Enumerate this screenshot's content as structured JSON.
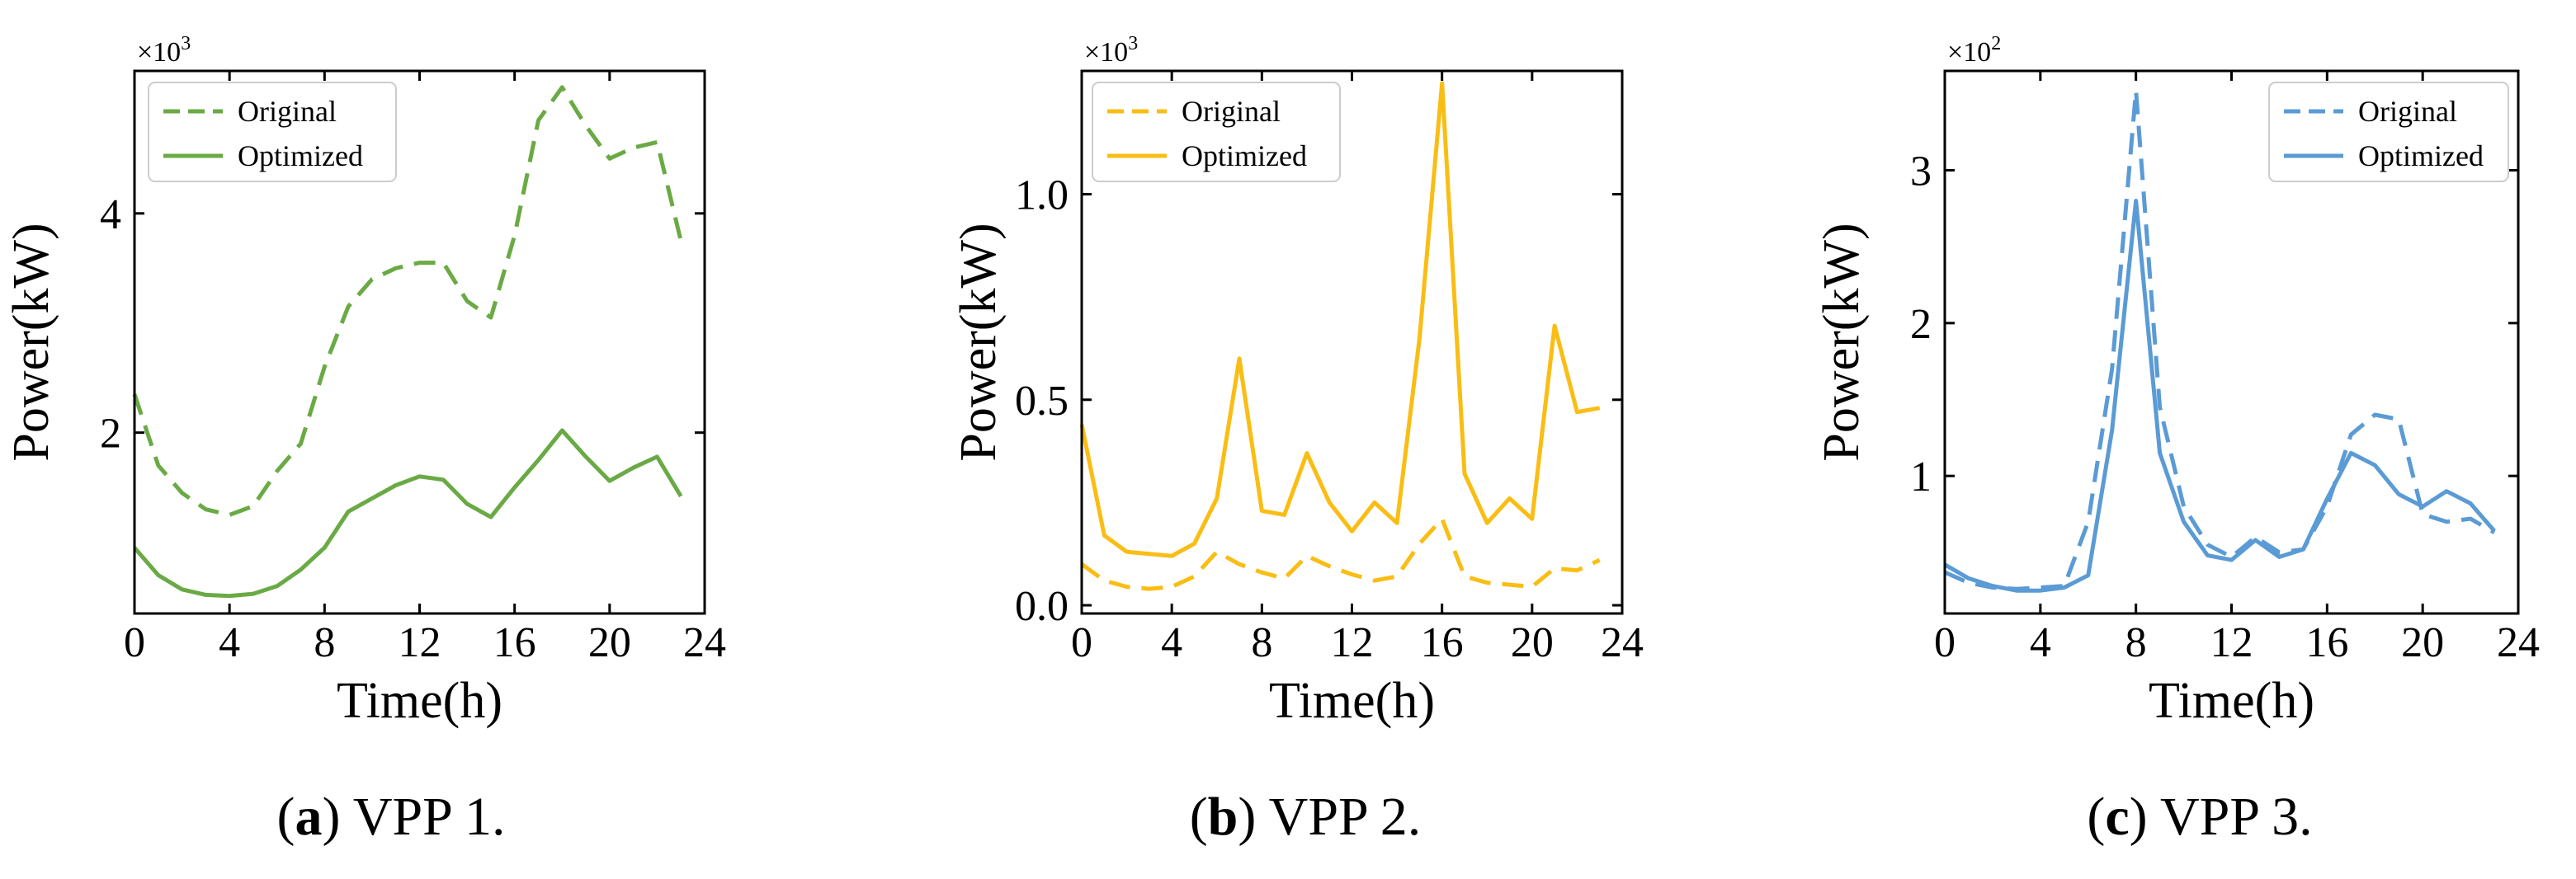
{
  "chart_data": [
    {
      "type": "line",
      "caption_letter": "a",
      "caption_rest": "VPP 1.",
      "xlabel": "Time(h)",
      "ylabel": "Power(kW)",
      "scale_label": "×10",
      "scale_exponent": "3",
      "xlim": [
        0,
        24
      ],
      "ylim": [
        0.35,
        5.3
      ],
      "xticks": [
        0,
        4,
        8,
        12,
        16,
        20,
        24
      ],
      "yticks": [
        2,
        4
      ],
      "color": "#6aaa45",
      "legend_position": "top-left",
      "x": [
        0,
        1,
        2,
        3,
        4,
        5,
        6,
        7,
        8,
        9,
        10,
        11,
        12,
        13,
        14,
        15,
        16,
        17,
        18,
        19,
        20,
        21,
        22,
        23
      ],
      "series": [
        {
          "name": "Original",
          "style": "dashed",
          "values": [
            2.35,
            1.7,
            1.45,
            1.3,
            1.25,
            1.33,
            1.65,
            1.9,
            2.6,
            3.15,
            3.4,
            3.5,
            3.55,
            3.55,
            3.2,
            3.05,
            3.8,
            4.85,
            5.15,
            4.8,
            4.5,
            4.6,
            4.65,
            3.75
          ]
        },
        {
          "name": "Optimized",
          "style": "solid",
          "values": [
            0.95,
            0.7,
            0.57,
            0.52,
            0.51,
            0.53,
            0.6,
            0.75,
            0.95,
            1.28,
            1.4,
            1.52,
            1.6,
            1.57,
            1.35,
            1.23,
            1.5,
            1.75,
            2.02,
            1.78,
            1.56,
            1.68,
            1.78,
            1.42
          ]
        }
      ]
    },
    {
      "type": "line",
      "caption_letter": "b",
      "caption_rest": "VPP 2.",
      "xlabel": "Time(h)",
      "ylabel": "Power(kW)",
      "scale_label": "×10",
      "scale_exponent": "3",
      "xlim": [
        0,
        24
      ],
      "ylim": [
        -0.02,
        1.3
      ],
      "xticks": [
        0,
        4,
        8,
        12,
        16,
        20,
        24
      ],
      "yticks": [
        0.0,
        0.5,
        1.0
      ],
      "ytick_labels": [
        "0.0",
        "0.5",
        "1.0"
      ],
      "color": "#f9bd14",
      "legend_position": "top-left",
      "x": [
        0,
        1,
        2,
        3,
        4,
        5,
        6,
        7,
        8,
        9,
        10,
        11,
        12,
        13,
        14,
        15,
        16,
        17,
        18,
        19,
        20,
        21,
        22,
        23
      ],
      "series": [
        {
          "name": "Original",
          "style": "dashed",
          "values": [
            0.1,
            0.06,
            0.045,
            0.04,
            0.045,
            0.07,
            0.13,
            0.1,
            0.08,
            0.065,
            0.12,
            0.095,
            0.075,
            0.06,
            0.07,
            0.15,
            0.21,
            0.07,
            0.055,
            0.05,
            0.045,
            0.09,
            0.085,
            0.11
          ]
        },
        {
          "name": "Optimized",
          "style": "solid",
          "values": [
            0.44,
            0.17,
            0.13,
            0.125,
            0.12,
            0.15,
            0.26,
            0.6,
            0.23,
            0.22,
            0.37,
            0.25,
            0.18,
            0.25,
            0.2,
            0.65,
            1.27,
            0.32,
            0.2,
            0.26,
            0.21,
            0.68,
            0.47,
            0.48
          ]
        }
      ]
    },
    {
      "type": "line",
      "caption_letter": "c",
      "caption_rest": "VPP 3.",
      "xlabel": "Time(h)",
      "ylabel": "Power(kW)",
      "scale_label": "×10",
      "scale_exponent": "2",
      "xlim": [
        0,
        24
      ],
      "ylim": [
        0.1,
        3.65
      ],
      "xticks": [
        0,
        4,
        8,
        12,
        16,
        20,
        24
      ],
      "yticks": [
        1,
        2,
        3
      ],
      "color": "#5b9bd5",
      "legend_position": "top-right",
      "x": [
        0,
        1,
        2,
        3,
        4,
        5,
        6,
        7,
        8,
        9,
        10,
        11,
        12,
        13,
        14,
        15,
        16,
        17,
        18,
        19,
        20,
        21,
        22,
        23
      ],
      "series": [
        {
          "name": "Original",
          "style": "dashed",
          "values": [
            0.37,
            0.3,
            0.27,
            0.26,
            0.27,
            0.28,
            0.7,
            1.7,
            3.52,
            1.45,
            0.8,
            0.55,
            0.47,
            0.6,
            0.5,
            0.52,
            0.8,
            1.27,
            1.4,
            1.37,
            0.75,
            0.7,
            0.72,
            0.63
          ]
        },
        {
          "name": "Optimized",
          "style": "solid",
          "values": [
            0.42,
            0.33,
            0.28,
            0.25,
            0.25,
            0.27,
            0.35,
            1.3,
            2.8,
            1.15,
            0.7,
            0.48,
            0.45,
            0.58,
            0.47,
            0.52,
            0.85,
            1.15,
            1.07,
            0.88,
            0.8,
            0.9,
            0.82,
            0.64
          ]
        }
      ]
    }
  ]
}
